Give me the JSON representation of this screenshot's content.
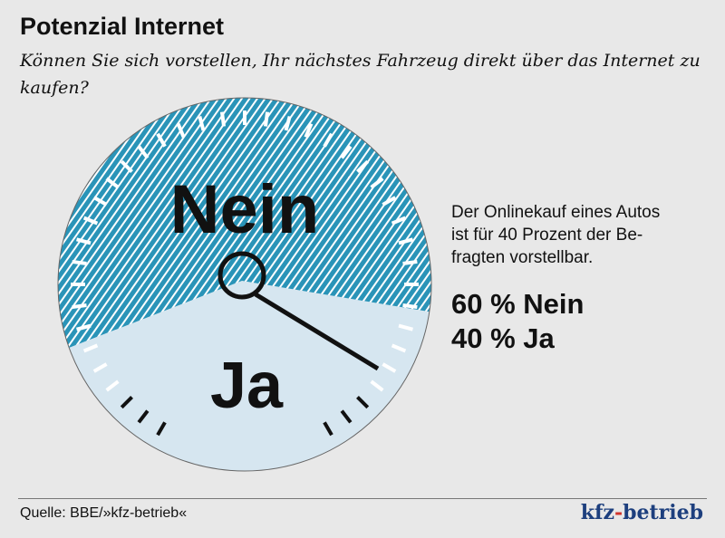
{
  "title": "Potenzial Internet",
  "subtitle": "Können Sie sich vorstellen, Ihr nächstes Fahrzeug direkt über das Internet zu kaufen?",
  "description": [
    "Der Onlinekauf eines Autos",
    "ist für 40 Prozent der Be-",
    "fragten vorstellbar."
  ],
  "results": [
    "60 % Nein",
    "40 % Ja"
  ],
  "source": "Quelle: BBE/»kfz-betrieb«",
  "logo": {
    "part1": "kfz",
    "dash": "-",
    "part2": "betrieb"
  },
  "colors": {
    "nein": "#2a94b8",
    "ja": "#d6e6f0",
    "background": "#e8e8e8",
    "logo": "#1d3f7e"
  },
  "chart_data": {
    "type": "pie",
    "title": "Potenzial Internet",
    "categories": [
      "Nein",
      "Ja"
    ],
    "values": [
      60,
      40
    ],
    "unit": "%"
  }
}
